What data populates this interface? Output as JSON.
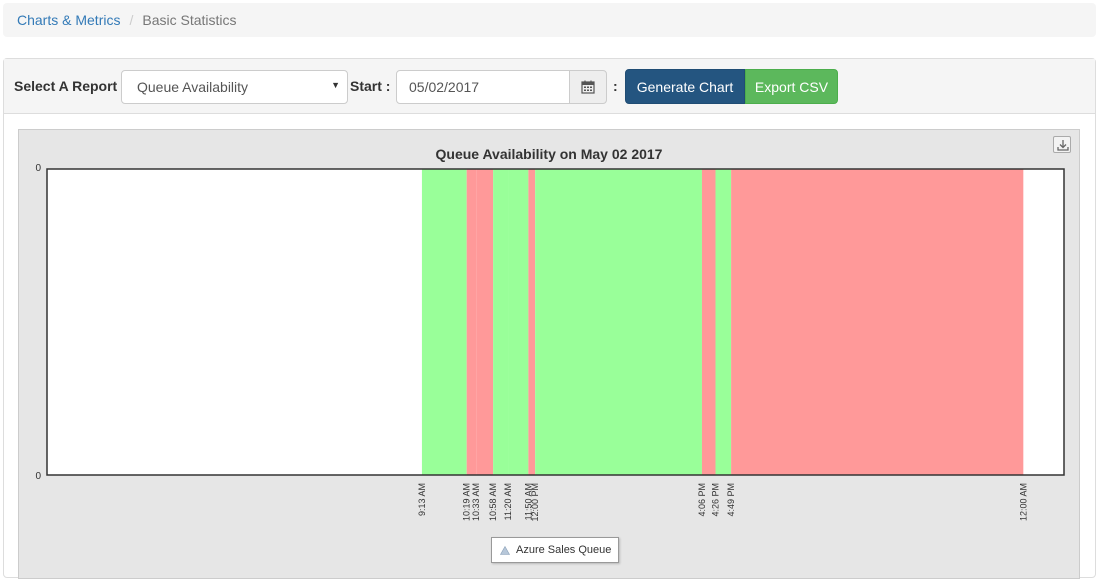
{
  "breadcrumb": {
    "link": "Charts & Metrics",
    "separator": "/",
    "active": "Basic Statistics"
  },
  "toolbar": {
    "report_label": "Select A Report",
    "report_selected": "Queue Availability",
    "start_label": "Start",
    "colon": ":",
    "start_date": "05/02/2017",
    "generate_label": "Generate Chart",
    "export_label": "Export CSV"
  },
  "icons": {
    "calendar": "calendar-icon",
    "dropdown": "caret-down-icon",
    "export": "download-icon",
    "legend": "triangle-icon"
  },
  "colors": {
    "available": "#99ff99",
    "unavailable": "#ff9999",
    "primary": "#245580",
    "success": "#5cb85c"
  },
  "chart_data": {
    "type": "area",
    "title": "Queue Availability on May 02 2017",
    "y_ticks": [
      "0",
      "0"
    ],
    "x_ticks": [
      "9:13 AM",
      "10:19 AM",
      "10:33 AM",
      "10:58 AM",
      "11:20 AM",
      "11:50 AM",
      "12:00 PM",
      "4:06 PM",
      "4:26 PM",
      "4:49 PM",
      "12:00 AM"
    ],
    "series": [
      {
        "name": "Azure Sales Queue"
      }
    ],
    "segments": [
      {
        "start": "9:13 AM",
        "end": "10:19 AM",
        "status": "available"
      },
      {
        "start": "10:19 AM",
        "end": "10:33 AM",
        "status": "unavailable"
      },
      {
        "start": "10:33 AM",
        "end": "10:58 AM",
        "status": "unavailable"
      },
      {
        "start": "10:58 AM",
        "end": "11:20 AM",
        "status": "available"
      },
      {
        "start": "11:20 AM",
        "end": "11:50 AM",
        "status": "available"
      },
      {
        "start": "11:50 AM",
        "end": "12:00 PM",
        "status": "unavailable"
      },
      {
        "start": "12:00 PM",
        "end": "4:06 PM",
        "status": "available"
      },
      {
        "start": "4:06 PM",
        "end": "4:26 PM",
        "status": "unavailable"
      },
      {
        "start": "4:26 PM",
        "end": "4:49 PM",
        "status": "available"
      },
      {
        "start": "4:49 PM",
        "end": "12:00 AM",
        "status": "unavailable"
      }
    ],
    "legend_position": "bottom-center",
    "grid": false
  }
}
